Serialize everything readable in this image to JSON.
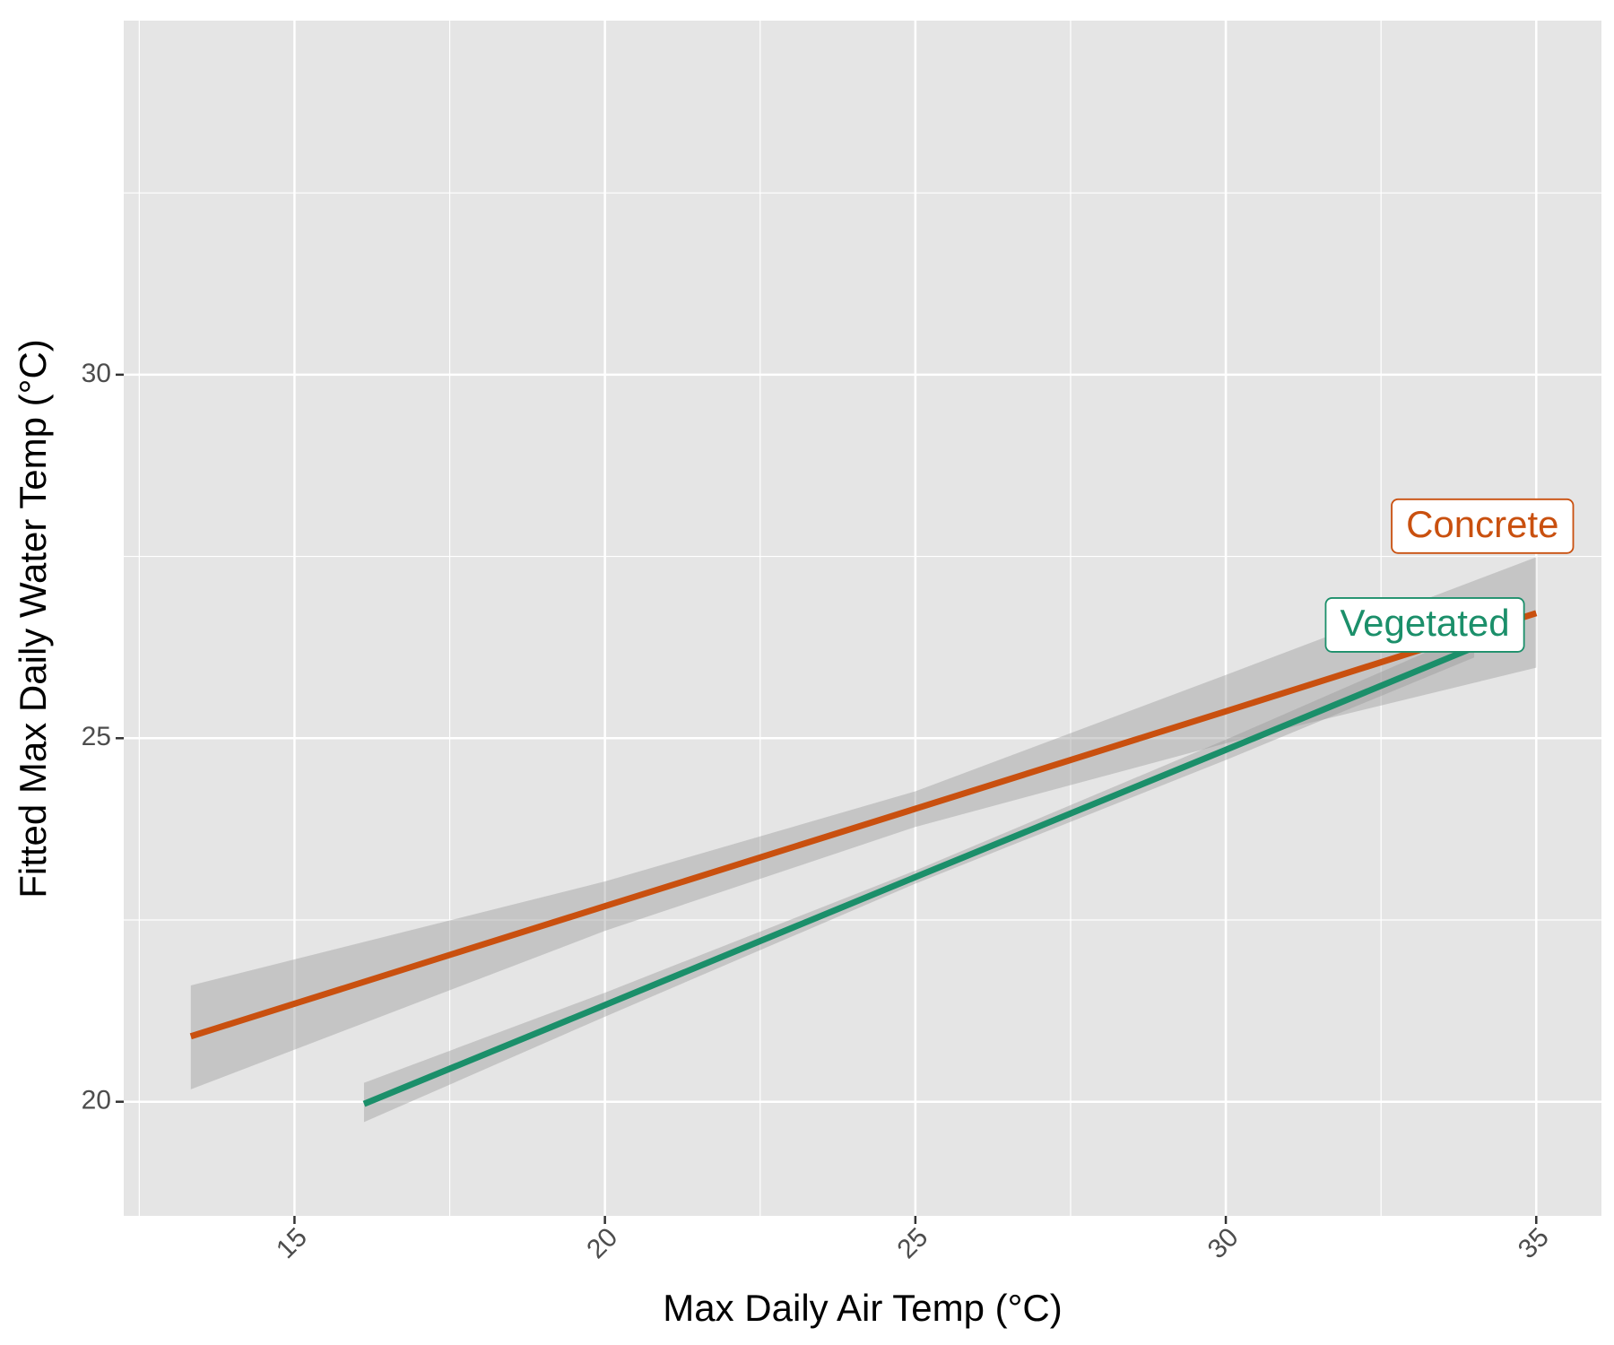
{
  "chart_data": {
    "type": "line",
    "xlabel": "Max Daily Air Temp (°C)",
    "ylabel": "Fitted Max Daily Water Temp (°C)",
    "xlim": [
      12.25,
      36.05
    ],
    "ylim": [
      18.43,
      34.87
    ],
    "xticks": [
      15,
      20,
      25,
      30,
      35
    ],
    "yticks": [
      20,
      25,
      30
    ],
    "x_minor_grid": [
      12.5,
      17.5,
      22.5,
      27.5,
      32.5
    ],
    "y_minor_grid": [
      22.5,
      27.5,
      32.5
    ],
    "grid": true,
    "series": [
      {
        "name": "Concrete",
        "color": "#c9500f",
        "x": [
          13.33,
          20,
          25,
          30,
          35
        ],
        "values": [
          20.9,
          22.69,
          24.03,
          25.37,
          26.72
        ],
        "lower": [
          20.17,
          22.35,
          23.78,
          24.93,
          25.97
        ],
        "upper": [
          21.6,
          23.03,
          24.27,
          25.87,
          27.49
        ]
      },
      {
        "name": "Vegetated",
        "color": "#1b8f6a",
        "x": [
          16.12,
          20,
          25,
          30,
          34
        ],
        "values": [
          19.97,
          21.33,
          23.09,
          24.84,
          26.25
        ],
        "lower": [
          19.72,
          21.17,
          23.0,
          24.7,
          26.11
        ],
        "upper": [
          20.26,
          21.5,
          23.18,
          24.98,
          26.47
        ]
      }
    ]
  }
}
